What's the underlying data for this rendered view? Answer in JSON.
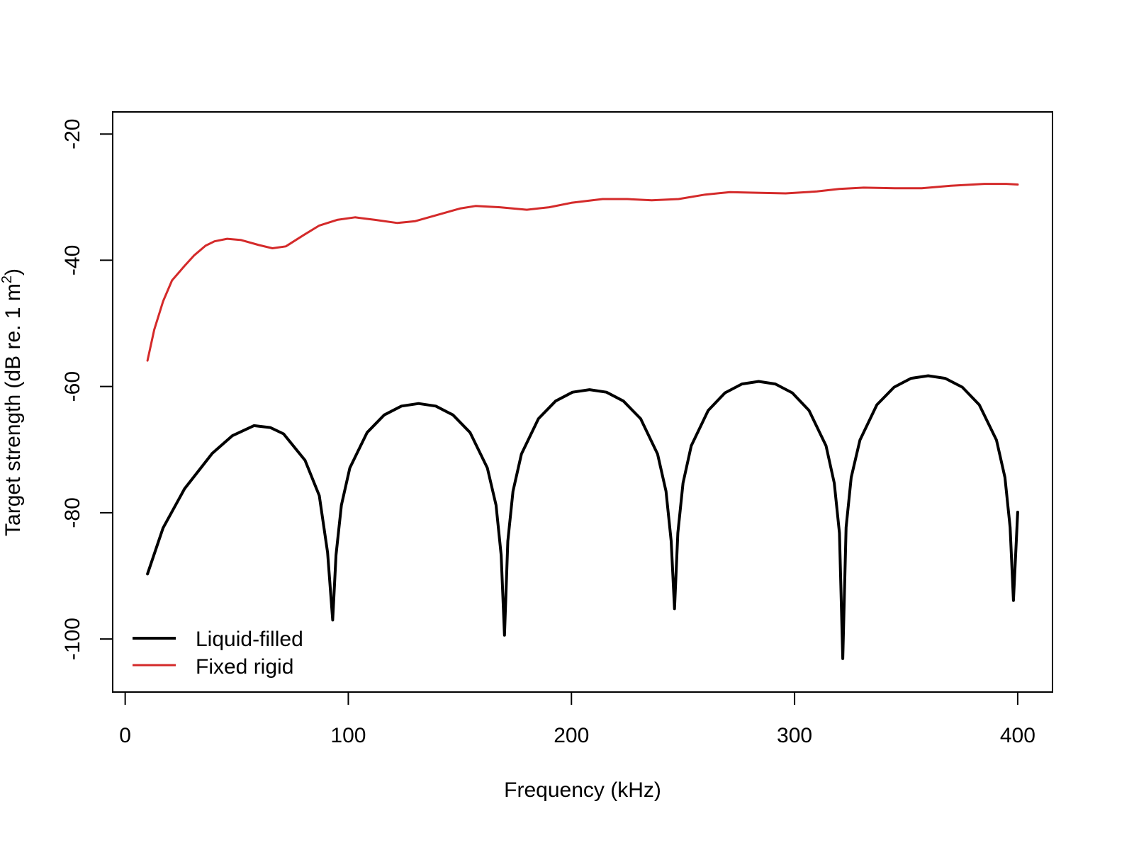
{
  "chart_data": {
    "type": "line",
    "title": "",
    "xlabel": "Frequency (kHz)",
    "ylabel": "Target strength (dB re. 1 m",
    "ylabel_superscript": "2",
    "ylabel_close": ")",
    "xlim": [
      -5.6,
      415.6
    ],
    "ylim": [
      -108.4,
      -16.5
    ],
    "x_ticks": [
      0,
      100,
      200,
      300,
      400
    ],
    "x_tick_labels": [
      "0",
      "100",
      "200",
      "300",
      "400"
    ],
    "y_ticks": [
      -20,
      -40,
      -60,
      -80,
      -100
    ],
    "y_tick_labels": [
      "-20",
      "-40",
      "-60",
      "-80",
      "-100"
    ],
    "grid": false,
    "legend_position": "bottom-left",
    "series": [
      {
        "name": "Liquid-filled",
        "color": "#000000",
        "points": [
          [
            10,
            -89.7
          ],
          [
            17,
            -82.4
          ],
          [
            26.6,
            -76.2
          ],
          [
            39,
            -70.6
          ],
          [
            48,
            -67.8
          ],
          [
            57.7,
            -66.2
          ],
          [
            65,
            -66.5
          ],
          [
            71,
            -67.5
          ],
          [
            80.6,
            -71.7
          ],
          [
            87,
            -77.3
          ],
          [
            90.7,
            -86.3
          ],
          [
            93,
            -97.0
          ],
          [
            94.5,
            -86.7
          ],
          [
            96.9,
            -78.8
          ],
          [
            100.7,
            -72.9
          ],
          [
            108.4,
            -67.3
          ],
          [
            116.1,
            -64.5
          ],
          [
            123.8,
            -63.1
          ],
          [
            131.5,
            -62.7
          ],
          [
            139.2,
            -63.1
          ],
          [
            146.9,
            -64.5
          ],
          [
            154.6,
            -67.3
          ],
          [
            162.3,
            -72.9
          ],
          [
            166.2,
            -78.8
          ],
          [
            168.5,
            -86.7
          ],
          [
            170,
            -99.4
          ],
          [
            171.5,
            -84.5
          ],
          [
            173.8,
            -76.6
          ],
          [
            177.6,
            -70.7
          ],
          [
            185.2,
            -65.1
          ],
          [
            192.9,
            -62.3
          ],
          [
            200.5,
            -60.9
          ],
          [
            208.1,
            -60.5
          ],
          [
            215.7,
            -60.9
          ],
          [
            223.3,
            -62.3
          ],
          [
            231.0,
            -65.1
          ],
          [
            238.6,
            -70.7
          ],
          [
            242.4,
            -76.6
          ],
          [
            244.7,
            -84.5
          ],
          [
            246.2,
            -95.2
          ],
          [
            247.7,
            -83.2
          ],
          [
            250.0,
            -75.3
          ],
          [
            253.7,
            -69.4
          ],
          [
            261.3,
            -63.8
          ],
          [
            268.8,
            -61.0
          ],
          [
            276.4,
            -59.6
          ],
          [
            283.9,
            -59.2
          ],
          [
            291.4,
            -59.6
          ],
          [
            299.0,
            -61.0
          ],
          [
            306.5,
            -63.8
          ],
          [
            314.1,
            -69.4
          ],
          [
            317.8,
            -75.3
          ],
          [
            320.1,
            -83.2
          ],
          [
            321.6,
            -103.1
          ],
          [
            323.1,
            -82.3
          ],
          [
            325.4,
            -74.4
          ],
          [
            329.3,
            -68.5
          ],
          [
            336.9,
            -62.9
          ],
          [
            344.6,
            -60.1
          ],
          [
            352.2,
            -58.7
          ],
          [
            359.9,
            -58.3
          ],
          [
            367.5,
            -58.7
          ],
          [
            375.2,
            -60.1
          ],
          [
            382.8,
            -62.9
          ],
          [
            390.5,
            -68.5
          ],
          [
            394.3,
            -74.4
          ],
          [
            396.6,
            -82.3
          ],
          [
            398.1,
            -93.9
          ],
          [
            400,
            -79.9
          ]
        ]
      },
      {
        "name": "Fixed rigid",
        "color": "#d42a2a",
        "points": [
          [
            10,
            -55.9
          ],
          [
            13,
            -51.0
          ],
          [
            17,
            -46.5
          ],
          [
            21,
            -43.2
          ],
          [
            26.6,
            -40.9
          ],
          [
            31,
            -39.2
          ],
          [
            36,
            -37.7
          ],
          [
            40,
            -37.0
          ],
          [
            45.7,
            -36.6
          ],
          [
            52,
            -36.8
          ],
          [
            60,
            -37.6
          ],
          [
            66,
            -38.1
          ],
          [
            72,
            -37.8
          ],
          [
            80,
            -36.0
          ],
          [
            87,
            -34.5
          ],
          [
            95,
            -33.6
          ],
          [
            103,
            -33.2
          ],
          [
            112,
            -33.6
          ],
          [
            122,
            -34.1
          ],
          [
            130,
            -33.8
          ],
          [
            140,
            -32.8
          ],
          [
            150,
            -31.8
          ],
          [
            157,
            -31.4
          ],
          [
            168,
            -31.6
          ],
          [
            180,
            -32.0
          ],
          [
            190,
            -31.6
          ],
          [
            200,
            -30.9
          ],
          [
            214,
            -30.3
          ],
          [
            225,
            -30.3
          ],
          [
            236,
            -30.5
          ],
          [
            248,
            -30.3
          ],
          [
            260,
            -29.6
          ],
          [
            271,
            -29.2
          ],
          [
            283,
            -29.3
          ],
          [
            296,
            -29.4
          ],
          [
            310,
            -29.1
          ],
          [
            320,
            -28.7
          ],
          [
            331,
            -28.5
          ],
          [
            345,
            -28.6
          ],
          [
            357,
            -28.6
          ],
          [
            370,
            -28.2
          ],
          [
            385,
            -27.9
          ],
          [
            395,
            -27.9
          ],
          [
            400,
            -28.0
          ]
        ]
      }
    ]
  }
}
